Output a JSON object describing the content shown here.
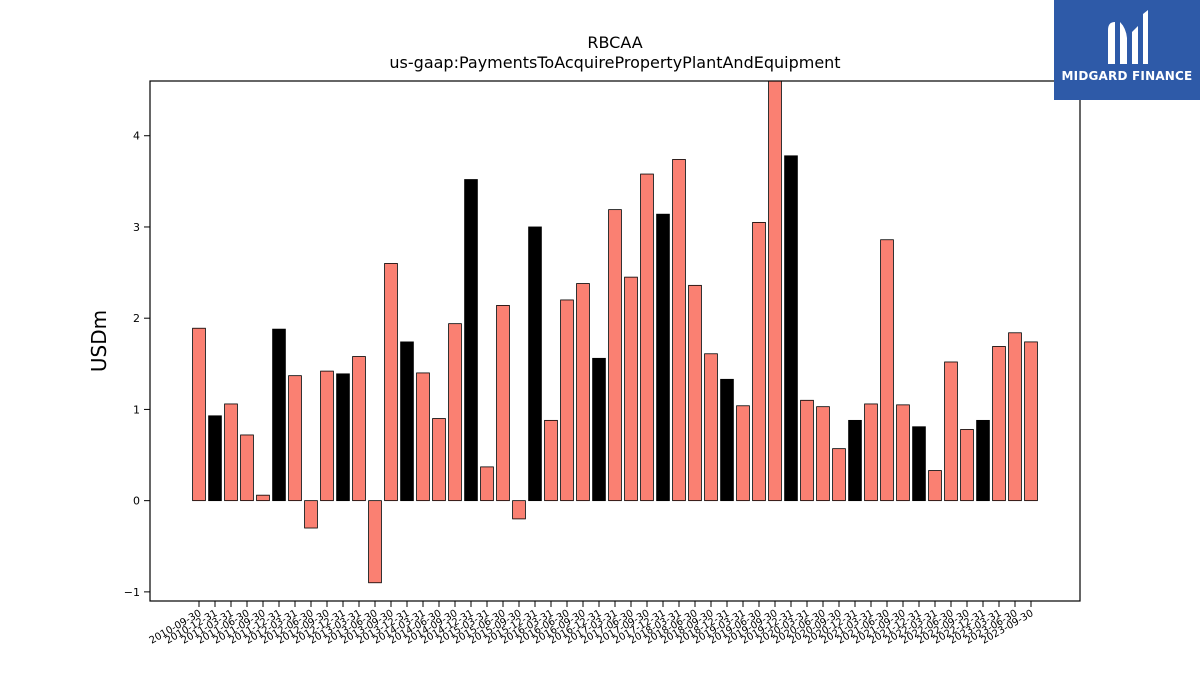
{
  "chart_data": {
    "type": "bar",
    "title": "RBCAA",
    "subtitle": "us-gaap:PaymentsToAcquirePropertyPlantAndEquipment",
    "ylabel": "USDm",
    "xlabel": "",
    "ylim": [
      -1.1,
      4.6
    ],
    "yticks": [
      -1,
      0,
      1,
      2,
      3,
      4
    ],
    "ytick_labels": [
      "−1",
      "0",
      "1",
      "2",
      "3",
      "4"
    ],
    "categories": [
      "2010-09-30",
      "2010-12-31",
      "2011-03-31",
      "2011-06-30",
      "2011-09-30",
      "2011-12-31",
      "2012-03-31",
      "2012-06-30",
      "2012-09-30",
      "2012-12-31",
      "2013-03-31",
      "2013-06-30",
      "2013-09-30",
      "2013-12-31",
      "2014-03-31",
      "2014-06-30",
      "2014-09-30",
      "2014-12-31",
      "2015-03-31",
      "2015-06-30",
      "2015-09-30",
      "2015-12-31",
      "2016-03-31",
      "2016-06-30",
      "2016-09-30",
      "2016-12-31",
      "2017-03-31",
      "2017-06-30",
      "2017-09-30",
      "2017-12-31",
      "2018-03-31",
      "2018-06-30",
      "2018-09-30",
      "2018-12-31",
      "2019-03-31",
      "2019-06-30",
      "2019-09-30",
      "2019-12-31",
      "2020-03-31",
      "2020-06-30",
      "2020-09-30",
      "2020-12-31",
      "2021-03-31",
      "2021-06-30",
      "2021-09-30",
      "2021-12-31",
      "2022-03-31",
      "2022-06-30",
      "2022-09-30",
      "2022-12-31",
      "2023-03-31",
      "2023-06-30",
      "2023-09-30"
    ],
    "tick_labels": [
      "2010-09-30",
      "2010-12-31",
      "2011-03-31",
      "2011-06-30",
      "2011-09-30",
      "2011-12-31",
      "2012-03-31",
      "2012-06-30",
      "2012-09-30",
      "2012-12-31",
      "2013-03-31",
      "2013-06-30",
      "2013-09-30",
      "2013-12-31",
      "2014-03-31",
      "2014-06-30",
      "2014-09-30",
      "2014-12-31",
      "2015-03-31",
      "2015-06-30",
      "2015-09-30",
      "2015-12-31",
      "2016-03-31",
      "2016-06-30",
      "2016-09-30",
      "2016-12-31",
      "2017-03-31",
      "2017-06-30",
      "2017-09-30",
      "2017-12-31",
      "2018-03-31",
      "2018-06-30",
      "2018-09-30",
      "2018-12-31",
      "2019-03-31",
      "2019-06-30",
      "2019-09-30",
      "2019-12-31",
      "2020-03-31",
      "2020-06-30",
      "2020-09-30",
      "2020-12-31",
      "2021-03-31",
      "2021-06-30",
      "2021-09-30",
      "2021-12-31",
      "2022-03-31",
      "2022-06-30",
      "2022-09-30",
      "2022-12-31",
      "2023-03-31",
      "2023-06-30",
      "2023-09-30"
    ],
    "values": [
      1.89,
      0.93,
      1.06,
      0.72,
      0.06,
      1.88,
      1.37,
      -0.3,
      1.42,
      1.39,
      1.58,
      -0.9,
      2.6,
      1.74,
      1.4,
      0.9,
      1.94,
      3.52,
      0.37,
      2.14,
      -0.2,
      3.0,
      0.88,
      2.2,
      2.38,
      1.56,
      3.19,
      2.45,
      3.58,
      3.14,
      3.74,
      2.36,
      1.61,
      1.33,
      1.04,
      3.05,
      4.62,
      3.78,
      1.1,
      1.03,
      0.57,
      0.88,
      1.06,
      2.86,
      1.05,
      0.81,
      0.33,
      1.52,
      0.78,
      0.88,
      1.69,
      1.84,
      1.74
    ],
    "highlight": [
      false,
      true,
      false,
      false,
      false,
      true,
      false,
      false,
      false,
      true,
      false,
      false,
      false,
      true,
      false,
      false,
      false,
      true,
      false,
      false,
      false,
      true,
      false,
      false,
      false,
      true,
      false,
      false,
      false,
      true,
      false,
      false,
      false,
      true,
      false,
      false,
      false,
      true,
      false,
      false,
      false,
      true,
      false,
      false,
      false,
      true,
      false,
      false,
      false,
      true,
      false,
      false,
      false
    ],
    "colors": {
      "bar": "#fa8072",
      "highlight": "#000000",
      "edge": "#000000"
    },
    "grid": false,
    "legend": "none"
  },
  "logo": {
    "text": "MIDGARD FINANCE",
    "color": "#2e5aa8"
  }
}
